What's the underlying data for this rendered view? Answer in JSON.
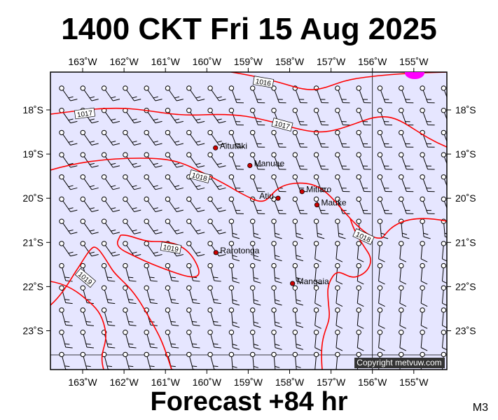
{
  "header": {
    "title": "1400 CKT Fri 15 Aug 2025"
  },
  "footer": {
    "title": "Forecast +84 hr",
    "code": "M3"
  },
  "map": {
    "copyright": "Copyright metvuw.com",
    "background_color": "#e6e6ff",
    "isobar_color": "#ff0000",
    "town_color": "#cc0000",
    "high_marker_color": "#ff00ff",
    "lon_ticks": [
      {
        "lon": -163,
        "label": "163˚W"
      },
      {
        "lon": -162,
        "label": "162˚W"
      },
      {
        "lon": -161,
        "label": "161˚W"
      },
      {
        "lon": -160,
        "label": "160˚W"
      },
      {
        "lon": -159,
        "label": "159˚W"
      },
      {
        "lon": -158,
        "label": "158˚W"
      },
      {
        "lon": -157,
        "label": "157˚W"
      },
      {
        "lon": -156,
        "label": "156˚W"
      },
      {
        "lon": -155,
        "label": "155˚W"
      }
    ],
    "lat_ticks": [
      {
        "lat": -18,
        "label": "18˚S"
      },
      {
        "lat": -19,
        "label": "19˚S"
      },
      {
        "lat": -20,
        "label": "20˚S"
      },
      {
        "lat": -21,
        "label": "21˚S"
      },
      {
        "lat": -22,
        "label": "22˚S"
      },
      {
        "lat": -23,
        "label": "23˚S"
      }
    ],
    "towns": [
      {
        "name": "Aitutaki",
        "lon": -159.79,
        "lat": -18.86
      },
      {
        "name": "Manuae",
        "lon": -158.96,
        "lat": -19.26
      },
      {
        "name": "Mitiaro",
        "lon": -157.7,
        "lat": -19.85
      },
      {
        "name": "Atiu",
        "lon": -158.28,
        "lat": -20.0
      },
      {
        "name": "Mauke",
        "lon": -157.34,
        "lat": -20.15
      },
      {
        "name": "Rarotonga",
        "lon": -159.78,
        "lat": -21.23
      },
      {
        "name": "Mangaia",
        "lon": -157.93,
        "lat": -21.93
      }
    ],
    "isobar_labels": [
      "1016",
      "1017",
      "1017",
      "1018",
      "1018",
      "1019",
      "1019"
    ]
  }
}
